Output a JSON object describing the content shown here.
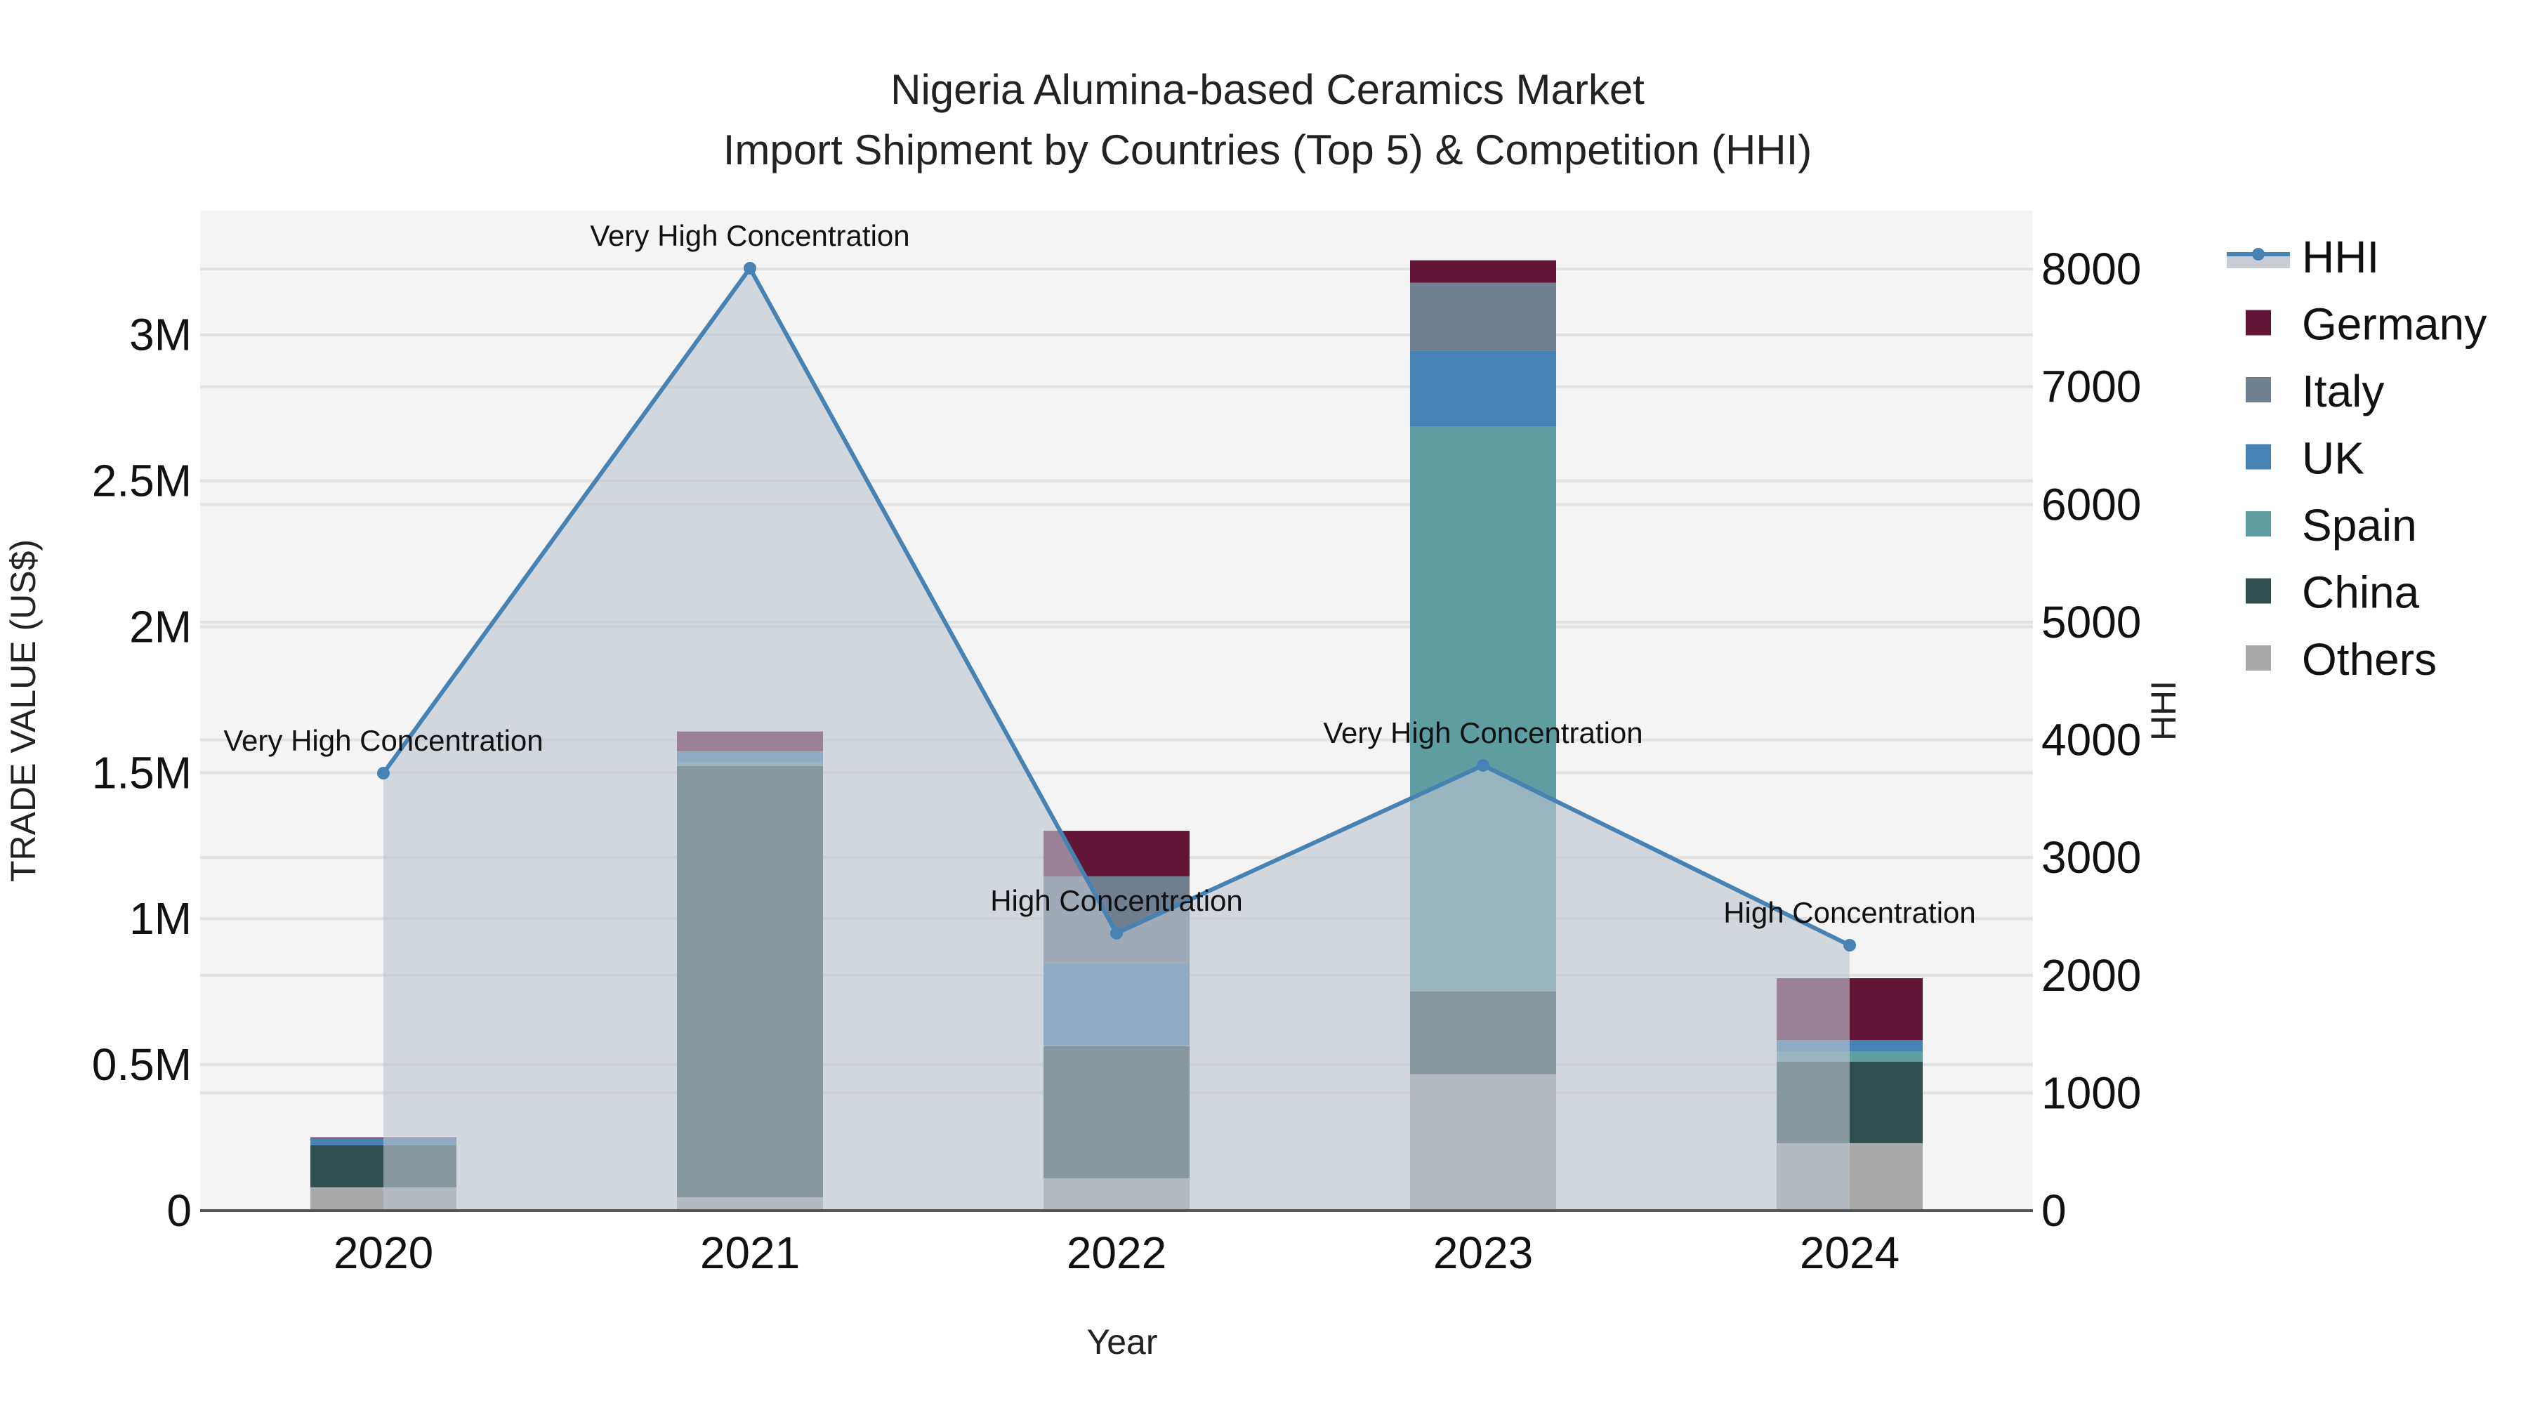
{
  "chart_data": {
    "type": "bar",
    "subtype": "stacked bar with secondary-axis line/area",
    "title": "Nigeria Alumina-based Ceramics Market",
    "subtitle": "Import Shipment by Countries (Top 5) & Competition (HHI)",
    "xlabel": "Year",
    "ylabel": "TRADE VALUE (US$)",
    "y2label": "HHI",
    "categories": [
      "2020",
      "2021",
      "2022",
      "2023",
      "2024"
    ],
    "ylim": [
      0,
      3425000
    ],
    "y2lim": [
      0,
      8496
    ],
    "yticks": [
      0,
      500000,
      1000000,
      1500000,
      2000000,
      2500000,
      3000000
    ],
    "ytick_labels": [
      "0",
      "0.5M",
      "1M",
      "1.5M",
      "2M",
      "2.5M",
      "3M"
    ],
    "y2ticks": [
      0,
      1000,
      2000,
      3000,
      4000,
      5000,
      6000,
      7000,
      8000
    ],
    "y2tick_labels": [
      "0",
      "1000",
      "2000",
      "3000",
      "4000",
      "5000",
      "6000",
      "7000",
      "8000"
    ],
    "grid": true,
    "legend_position": "right",
    "series": [
      {
        "name": "Others",
        "color": "#a9a9a9",
        "values": [
          80000,
          46000,
          111000,
          467000,
          231000
        ]
      },
      {
        "name": "China",
        "color": "#2f4f4f",
        "values": [
          144000,
          1477000,
          452000,
          284000,
          279000
        ]
      },
      {
        "name": "Spain",
        "color": "#5f9ea0",
        "values": [
          0,
          14000,
          3000,
          1934000,
          36000
        ]
      },
      {
        "name": "UK",
        "color": "#4682b4",
        "values": [
          24000,
          36000,
          281000,
          260000,
          38000
        ]
      },
      {
        "name": "Italy",
        "color": "#708090",
        "values": [
          1000,
          1000,
          298000,
          233000,
          0
        ]
      },
      {
        "name": "Germany",
        "color": "#631536",
        "values": [
          2000,
          67000,
          156000,
          77000,
          212000
        ]
      }
    ],
    "line_series": {
      "name": "HHI",
      "axis": "y2",
      "color": "#4682b4",
      "fill_color": "#c8ccd4",
      "values": [
        3717,
        8007,
        2357,
        3783,
        2255
      ],
      "annotations": [
        "Very High Concentration",
        "Very High Concentration",
        "High Concentration",
        "Very High Concentration",
        "High Concentration"
      ]
    }
  },
  "legend": {
    "items": [
      {
        "label": "HHI",
        "type": "line"
      },
      {
        "label": "Germany",
        "color": "#631536"
      },
      {
        "label": "Italy",
        "color": "#708090"
      },
      {
        "label": "UK",
        "color": "#4682b4"
      },
      {
        "label": "Spain",
        "color": "#5f9ea0"
      },
      {
        "label": "China",
        "color": "#2f4f4f"
      },
      {
        "label": "Others",
        "color": "#a9a9a9"
      }
    ]
  }
}
